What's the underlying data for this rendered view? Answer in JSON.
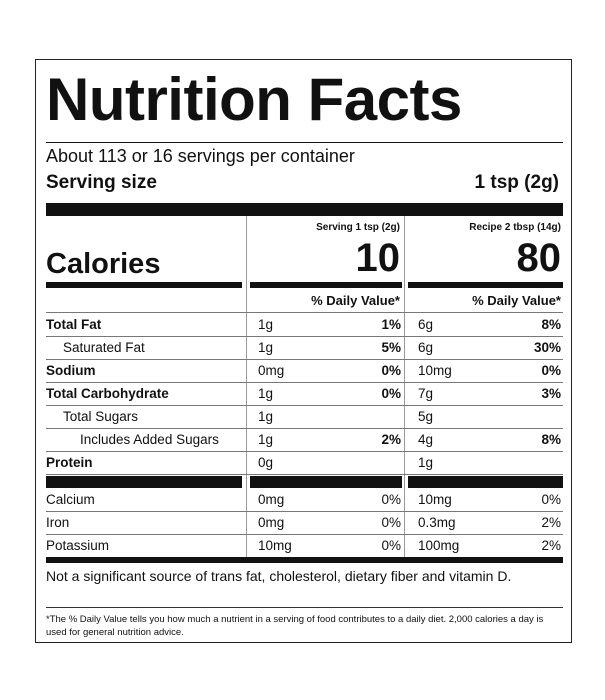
{
  "label": {
    "title": "Nutrition Facts",
    "servings_per_container": "About 113 or 16 servings per container",
    "serving_size_label": "Serving size",
    "serving_size_value": "1 tsp (2g)",
    "columns": [
      {
        "header": "Serving 1 tsp (2g)",
        "calories": "10"
      },
      {
        "header": "Recipe 2 tbsp (14g)",
        "calories": "80"
      }
    ],
    "calories_label": "Calories",
    "daily_value_header": "% Daily Value*",
    "nutrients": [
      {
        "name": "Total Fat",
        "bold": true,
        "indent": 0,
        "v1": "1g",
        "p1": "1%",
        "v2": "6g",
        "p2": "8%"
      },
      {
        "name": "Saturated Fat",
        "bold": false,
        "indent": 1,
        "v1": "1g",
        "p1": "5%",
        "v2": "6g",
        "p2": "30%"
      },
      {
        "name": "Sodium",
        "bold": true,
        "indent": 0,
        "v1": "0mg",
        "p1": "0%",
        "v2": "10mg",
        "p2": "0%"
      },
      {
        "name": "Total Carbohydrate",
        "bold": true,
        "indent": 0,
        "v1": "1g",
        "p1": "0%",
        "v2": "7g",
        "p2": "3%"
      },
      {
        "name": "Total Sugars",
        "bold": false,
        "indent": 1,
        "v1": "1g",
        "p1": "",
        "v2": "5g",
        "p2": ""
      },
      {
        "name": "Includes Added Sugars",
        "bold": false,
        "indent": 2,
        "v1": "1g",
        "p1": "2%",
        "v2": "4g",
        "p2": "8%"
      },
      {
        "name": "Protein",
        "bold": true,
        "indent": 0,
        "v1": "0g",
        "p1": "",
        "v2": "1g",
        "p2": ""
      }
    ],
    "minerals": [
      {
        "name": "Calcium",
        "v1": "0mg",
        "p1": "0%",
        "v2": "10mg",
        "p2": "0%"
      },
      {
        "name": "Iron",
        "v1": "0mg",
        "p1": "0%",
        "v2": "0.3mg",
        "p2": "2%"
      },
      {
        "name": "Potassium",
        "v1": "10mg",
        "p1": "0%",
        "v2": "100mg",
        "p2": "2%"
      }
    ],
    "not_significant": "Not a significant source of trans fat, cholesterol, dietary fiber and vitamin D.",
    "footnote": "*The % Daily Value tells you how much a nutrient in a serving of food contributes to a daily diet. 2,000 calories a day is used for general nutrition advice."
  }
}
